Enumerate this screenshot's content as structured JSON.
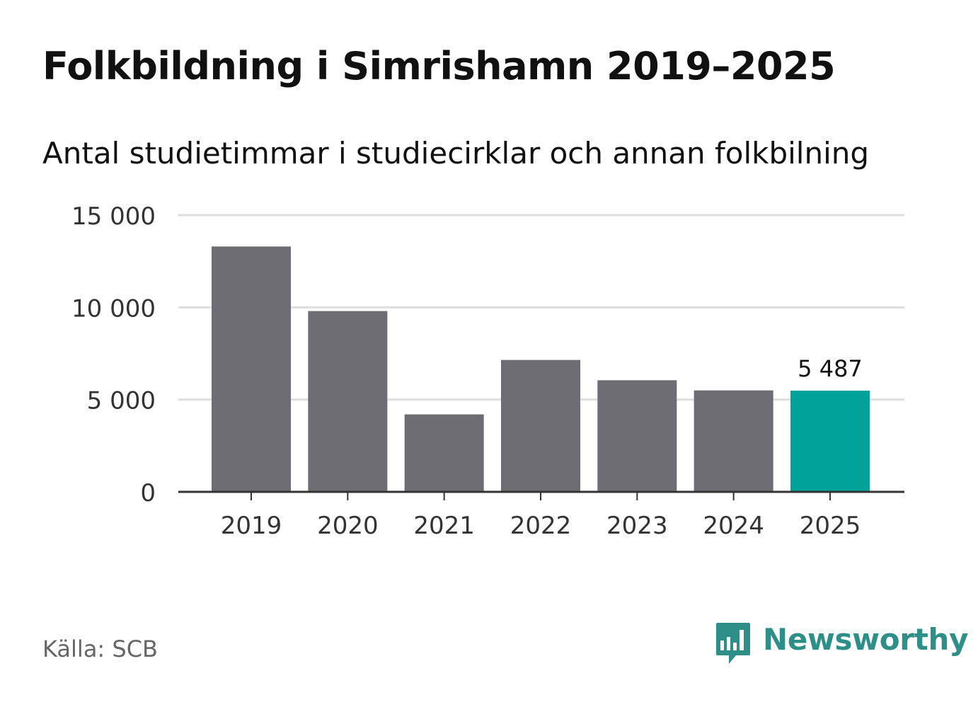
{
  "chart_data": {
    "type": "bar",
    "title": "Folkbildning i Simrishamn 2019–2025",
    "subtitle": "Antal studietimmar i studiecirklar och annan folkbilning",
    "categories": [
      "2019",
      "2020",
      "2021",
      "2022",
      "2023",
      "2024",
      "2025"
    ],
    "values": [
      13300,
      9800,
      4200,
      7150,
      6050,
      5500,
      5487
    ],
    "ylim": [
      0,
      15000
    ],
    "yticks": [
      0,
      5000,
      10000,
      15000
    ],
    "ytick_labels": [
      "0",
      "5 000",
      "10 000",
      "15 000"
    ],
    "xlabel": "",
    "ylabel": "",
    "grid": true,
    "annotation": {
      "index": 6,
      "label": "5 487"
    },
    "colors": {
      "bar": "#6e6d73",
      "highlight": "#00a29a",
      "grid": "#dedede",
      "axis": "#333333"
    }
  },
  "footer": {
    "source": "Källa: SCB",
    "brand": "Newsworthy",
    "brand_icon": "newsworthy-bar-chart-icon",
    "brand_color": "#2e8e88"
  }
}
